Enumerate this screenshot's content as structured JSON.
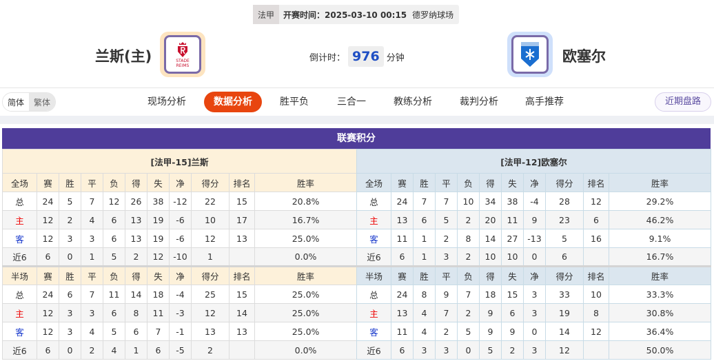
{
  "header": {
    "league": "法甲",
    "kickoff": "开赛时间：2025-03-10 00:15",
    "venue": "德罗纳球场",
    "home_team": "兰斯(主)",
    "away_team": "欧塞尔",
    "home_logo_text": "STADE REIMS",
    "countdown_label": "倒计时：",
    "countdown_value": "976",
    "countdown_unit": "分钟",
    "colors": {
      "countdown": "#1f4fc4",
      "home_logo_bg": "#fde4c0",
      "away_logo_bg": "#cfe0fb"
    }
  },
  "nav": {
    "lang": [
      "简体",
      "繁体"
    ],
    "tabs": [
      "现场分析",
      "数据分析",
      "胜平负",
      "三合一",
      "教练分析",
      "裁判分析",
      "高手推荐"
    ],
    "active": "数据分析",
    "recent": "近期盘路",
    "accent": "#e8450f"
  },
  "standings": {
    "title": "联赛积分",
    "columns": [
      "赛",
      "胜",
      "平",
      "负",
      "得",
      "失",
      "净",
      "得分",
      "排名",
      "胜率"
    ],
    "tables": [
      {
        "team": "[法甲-15]兰斯",
        "sections": [
          {
            "label": "全场",
            "rows": [
              [
                "总",
                "24",
                "5",
                "7",
                "12",
                "26",
                "38",
                "-12",
                "22",
                "15",
                "20.8%"
              ],
              [
                "主",
                "12",
                "2",
                "4",
                "6",
                "13",
                "19",
                "-6",
                "10",
                "17",
                "16.7%"
              ],
              [
                "客",
                "12",
                "3",
                "3",
                "6",
                "13",
                "19",
                "-6",
                "12",
                "13",
                "25.0%"
              ],
              [
                "近6",
                "6",
                "0",
                "1",
                "5",
                "2",
                "12",
                "-10",
                "1",
                "",
                "0.0%"
              ]
            ]
          },
          {
            "label": "半场",
            "rows": [
              [
                "总",
                "24",
                "6",
                "7",
                "11",
                "14",
                "18",
                "-4",
                "25",
                "15",
                "25.0%"
              ],
              [
                "主",
                "12",
                "3",
                "3",
                "6",
                "8",
                "11",
                "-3",
                "12",
                "14",
                "25.0%"
              ],
              [
                "客",
                "12",
                "3",
                "4",
                "5",
                "6",
                "7",
                "-1",
                "13",
                "13",
                "25.0%"
              ],
              [
                "近6",
                "6",
                "0",
                "2",
                "4",
                "1",
                "6",
                "-5",
                "2",
                "",
                "0.0%"
              ]
            ]
          }
        ]
      },
      {
        "team": "[法甲-12]欧塞尔",
        "sections": [
          {
            "label": "全场",
            "rows": [
              [
                "总",
                "24",
                "7",
                "7",
                "10",
                "34",
                "38",
                "-4",
                "28",
                "12",
                "29.2%"
              ],
              [
                "主",
                "13",
                "6",
                "5",
                "2",
                "20",
                "11",
                "9",
                "23",
                "6",
                "46.2%"
              ],
              [
                "客",
                "11",
                "1",
                "2",
                "8",
                "14",
                "27",
                "-13",
                "5",
                "16",
                "9.1%"
              ],
              [
                "近6",
                "6",
                "1",
                "3",
                "2",
                "10",
                "10",
                "0",
                "6",
                "",
                "16.7%"
              ]
            ]
          },
          {
            "label": "半场",
            "rows": [
              [
                "总",
                "24",
                "8",
                "9",
                "7",
                "18",
                "15",
                "3",
                "33",
                "10",
                "33.3%"
              ],
              [
                "主",
                "13",
                "4",
                "7",
                "2",
                "9",
                "6",
                "3",
                "19",
                "8",
                "30.8%"
              ],
              [
                "客",
                "11",
                "4",
                "2",
                "5",
                "9",
                "9",
                "0",
                "14",
                "12",
                "36.4%"
              ],
              [
                "近6",
                "6",
                "3",
                "3",
                "0",
                "5",
                "2",
                "3",
                "12",
                "",
                "50.0%"
              ]
            ]
          }
        ]
      }
    ]
  }
}
